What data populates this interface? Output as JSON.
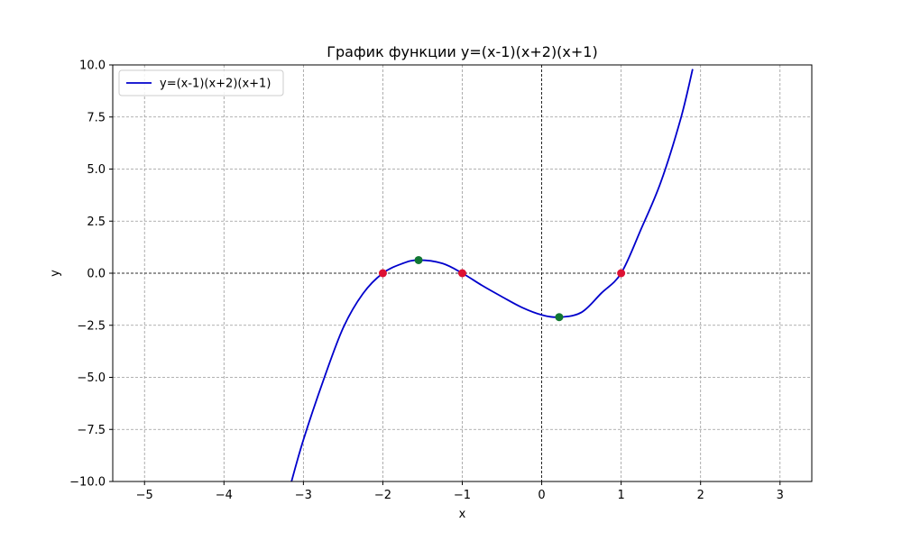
{
  "chart_data": {
    "type": "line",
    "title": "График функции y=(x-1)(x+2)(x+1)",
    "xlabel": "x",
    "ylabel": "y",
    "xlim": [
      -5.4,
      3.4
    ],
    "ylim": [
      -10,
      10
    ],
    "grid": true,
    "legend_position": "top-left",
    "xticks": [
      -5,
      -4,
      -3,
      -2,
      -1,
      0,
      1,
      2,
      3
    ],
    "xtick_labels": [
      "−5",
      "−4",
      "−3",
      "−2",
      "−1",
      "0",
      "1",
      "2",
      "3"
    ],
    "yticks": [
      -10,
      -7.5,
      -5,
      -2.5,
      0,
      2.5,
      5,
      7.5,
      10
    ],
    "ytick_labels": [
      "−10.0",
      "−7.5",
      "−5.0",
      "−2.5",
      "0.0",
      "2.5",
      "5.0",
      "7.5",
      "10.0"
    ],
    "series": [
      {
        "name": "y=(x-1)(x+2)(x+1)",
        "color": "#0000cc",
        "x": [
          -3.15,
          -3.0,
          -2.75,
          -2.5,
          -2.25,
          -2.0,
          -1.75,
          -1.55,
          -1.25,
          -1.0,
          -0.75,
          -0.5,
          -0.25,
          0.0,
          0.22,
          0.5,
          0.75,
          1.0,
          1.25,
          1.5,
          1.75,
          1.9
        ],
        "y": [
          -10.0,
          -8.0,
          -5.16,
          -2.63,
          -0.98,
          0.0,
          0.47,
          0.63,
          0.47,
          0.0,
          -0.59,
          -1.13,
          -1.64,
          -2.0,
          -2.11,
          -1.88,
          -0.96,
          0.0,
          2.11,
          4.38,
          7.42,
          9.8
        ]
      }
    ],
    "markers": [
      {
        "kind": "roots",
        "color": "#dd1133",
        "points": [
          [
            -2,
            0
          ],
          [
            -1,
            0
          ],
          [
            1,
            0
          ]
        ]
      },
      {
        "kind": "extrema",
        "color": "#117733",
        "points": [
          [
            -1.55,
            0.63
          ],
          [
            0.22,
            -2.11
          ]
        ]
      }
    ],
    "zero_lines_color": "#000000"
  }
}
